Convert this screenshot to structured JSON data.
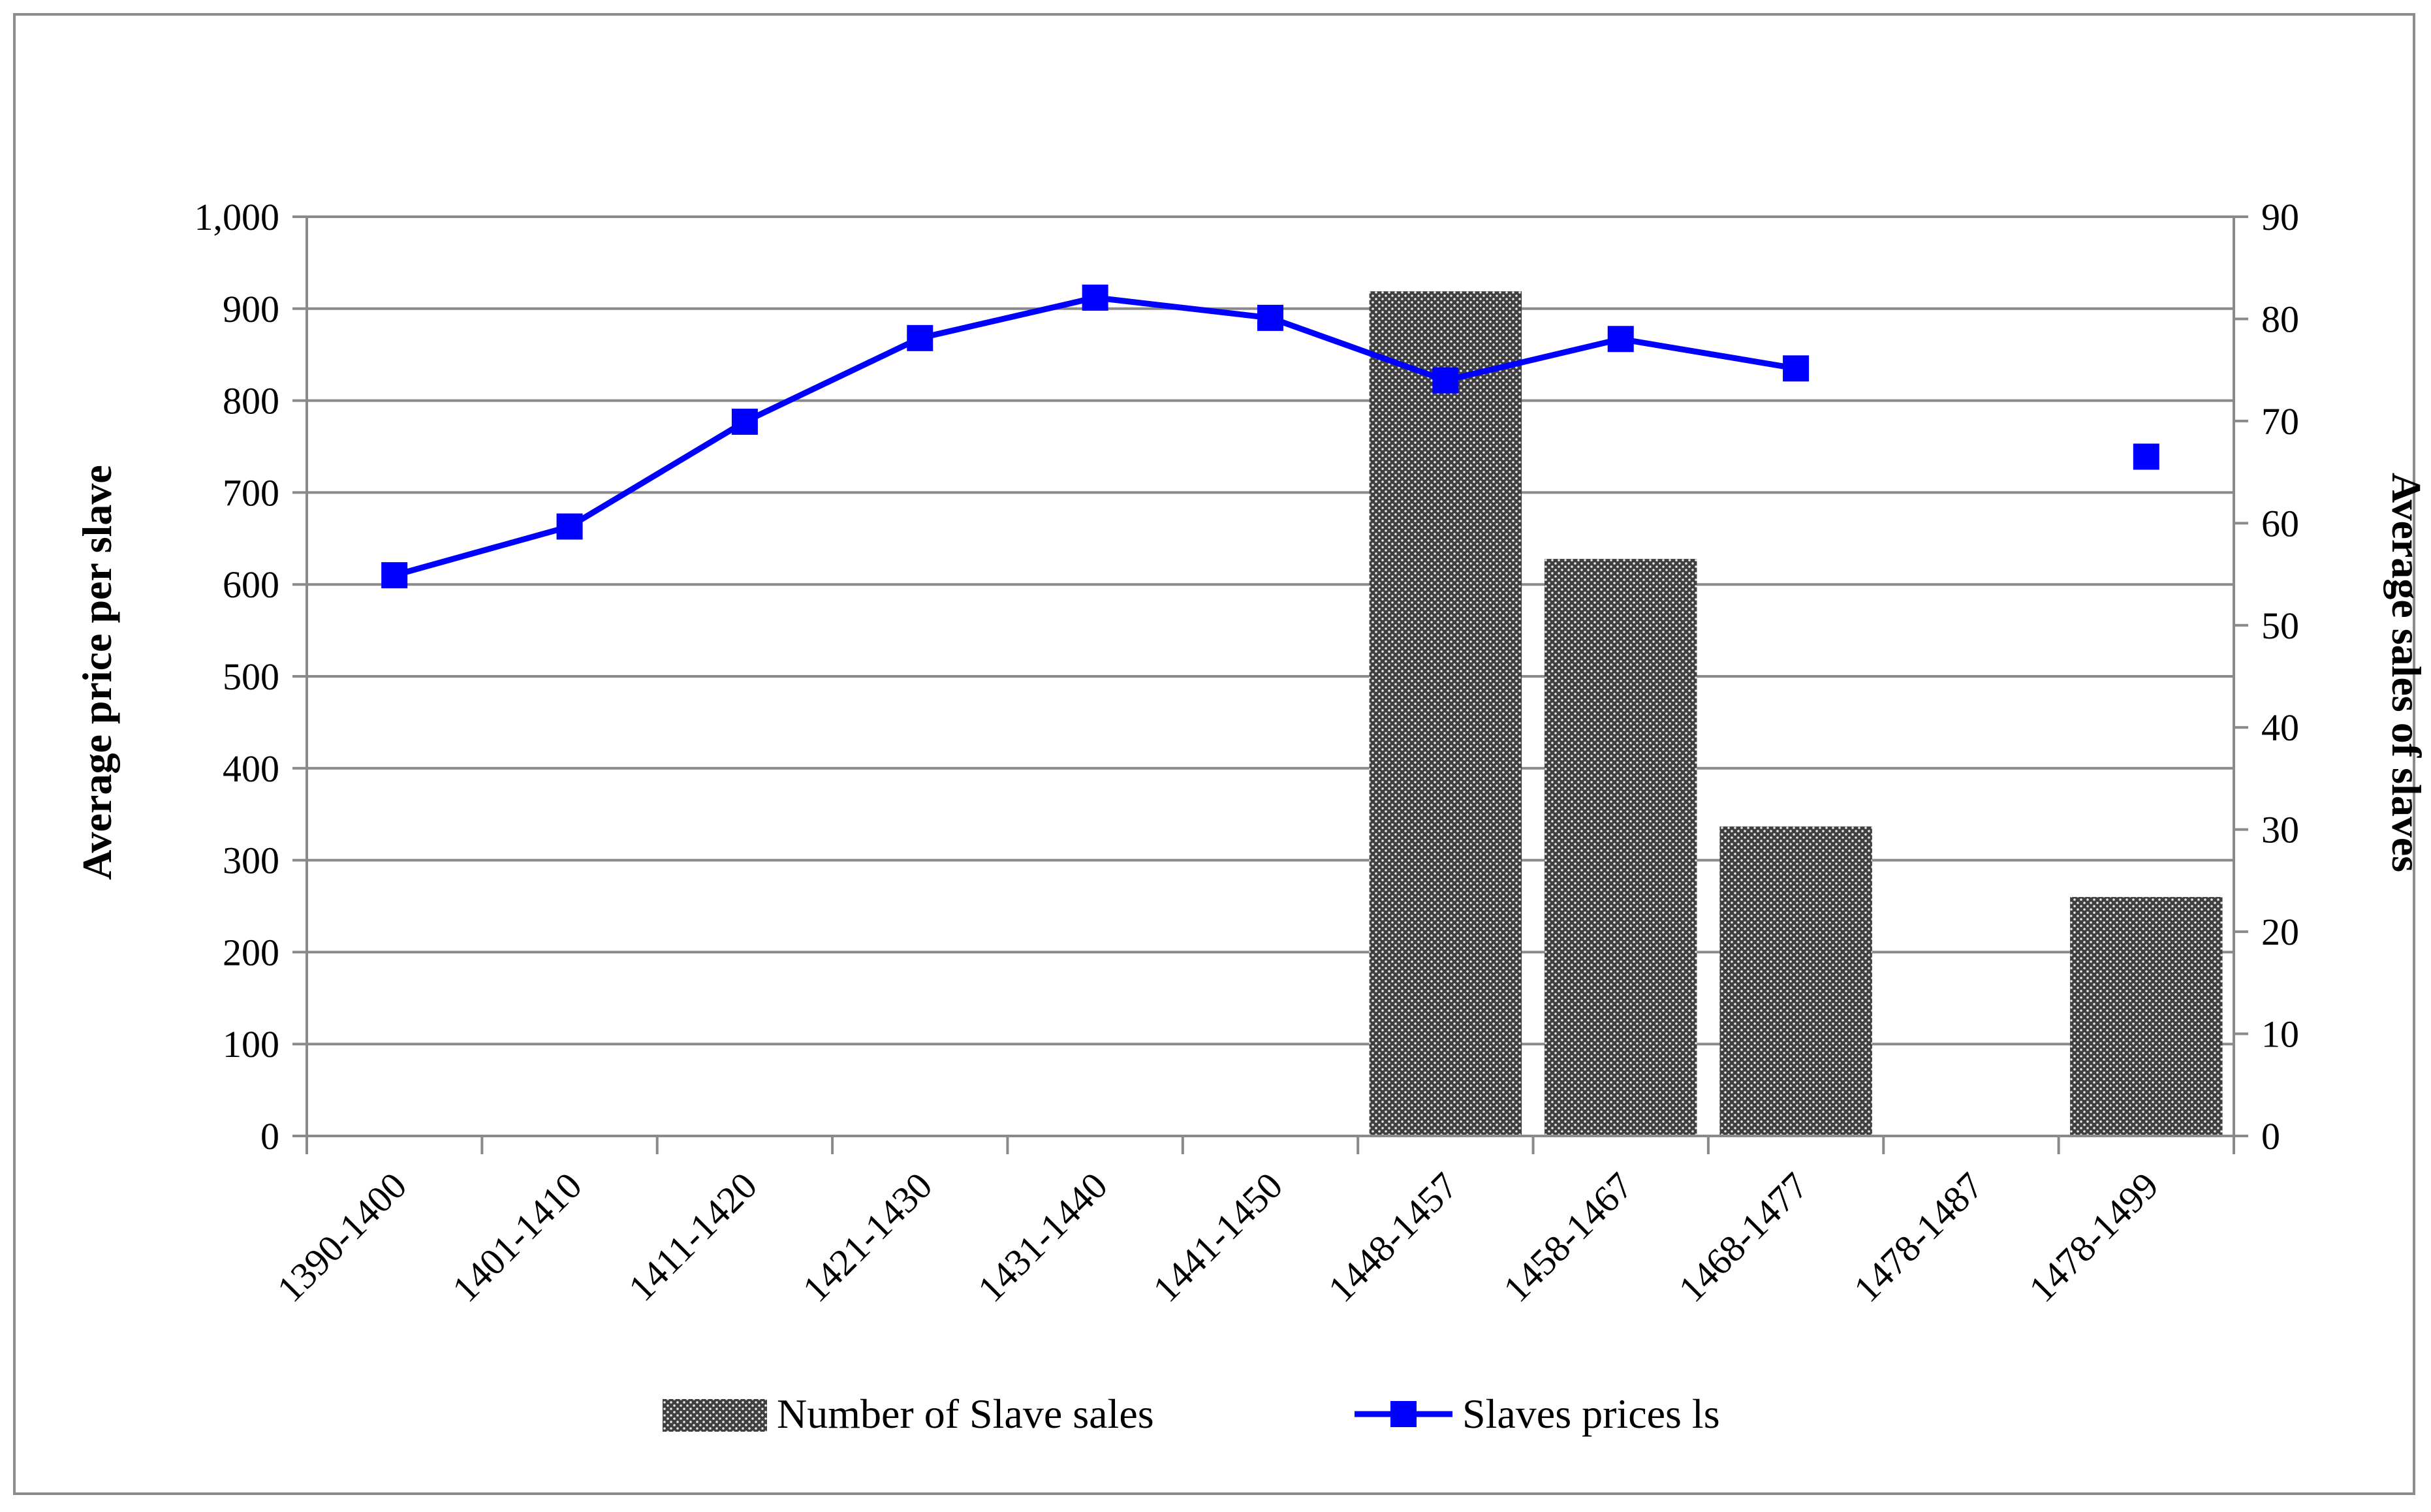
{
  "chart_data": {
    "type": "bar",
    "title": "",
    "categories": [
      "1390-1400",
      "1401-1410",
      "1411-1420",
      "1421-1430",
      "1431-1440",
      "1441-1450",
      "1448-1457",
      "1458-1467",
      "1468-1477",
      "1478-1487",
      "1478-1499"
    ],
    "series": [
      {
        "name": "Number of Slave sales",
        "kind": "bar",
        "axis": "right",
        "color": "#555555",
        "values": [
          null,
          null,
          null,
          null,
          null,
          null,
          82.7,
          56.5,
          30.3,
          null,
          23.4
        ]
      },
      {
        "name": "Slaves prices ls",
        "kind": "line",
        "axis": "left",
        "color": "#0000ff",
        "marker": "square",
        "values": [
          610,
          663,
          777,
          868,
          912,
          890,
          822,
          867,
          835,
          null,
          739
        ]
      }
    ],
    "y_left": {
      "label": "Average price per slave",
      "range": [
        0,
        1000
      ],
      "ticks": [
        "0",
        "100",
        "200",
        "300",
        "400",
        "500",
        "600",
        "700",
        "800",
        "900",
        "1,000"
      ]
    },
    "y_right": {
      "label": "Average sales of slaves",
      "range": [
        0,
        90
      ],
      "ticks": [
        "0",
        "10",
        "20",
        "30",
        "40",
        "50",
        "60",
        "70",
        "80",
        "90"
      ]
    },
    "grid": "horizontal",
    "legend": "bottom"
  }
}
